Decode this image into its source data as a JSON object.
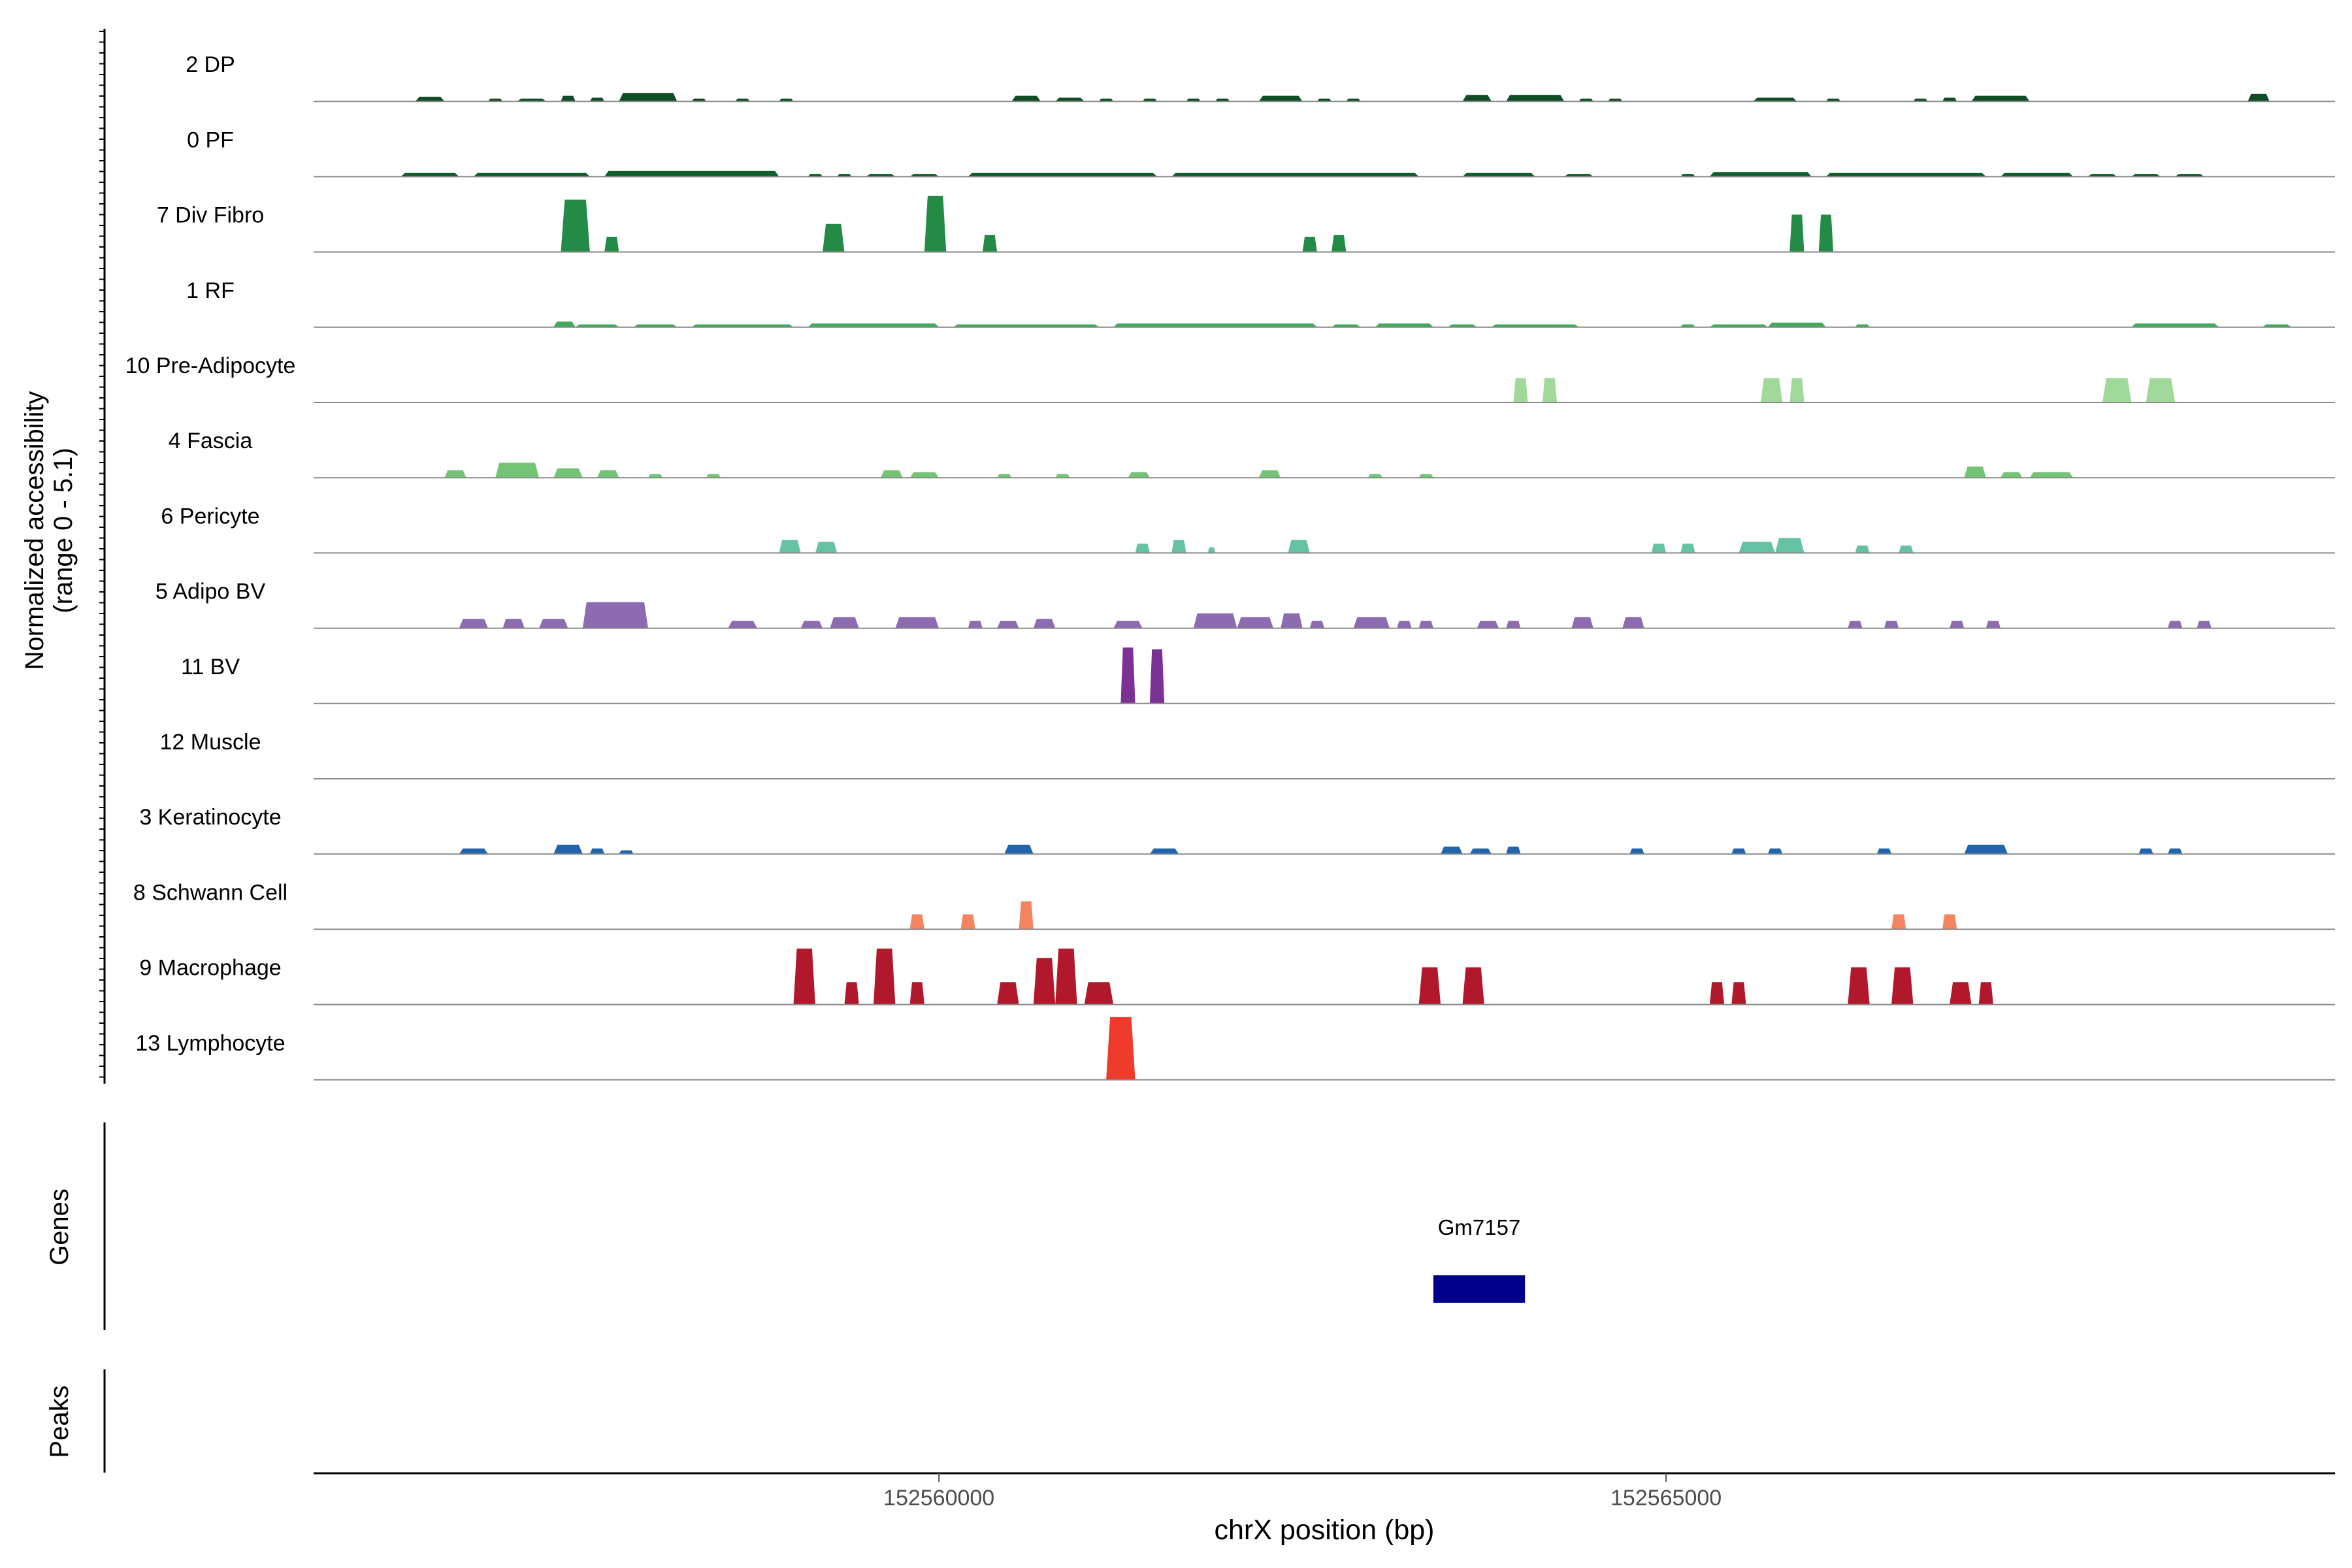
{
  "chart_data": {
    "type": "area",
    "subtype": "genome-coverage-tracks",
    "xlabel": "chrX position (bp)",
    "ylabel_line1": "Normalized accessibility",
    "ylabel_line2": "(range 0 - 5.1)",
    "y_range": [
      0,
      5.1
    ],
    "x_range": [
      152555700,
      152569600
    ],
    "x_ticks": [
      {
        "value": 152560000,
        "label": "152560000"
      },
      {
        "value": 152565000,
        "label": "152565000"
      }
    ],
    "tracks": [
      {
        "name": "2 DP",
        "color": "#0f4d25",
        "peaks": [
          [
            152556400,
            152556600,
            0.25
          ],
          [
            152556900,
            152557000,
            0.15
          ],
          [
            152557100,
            152557300,
            0.15
          ],
          [
            152557400,
            152557500,
            0.3
          ],
          [
            152557600,
            152557700,
            0.2
          ],
          [
            152557800,
            152558200,
            0.45
          ],
          [
            152558300,
            152558400,
            0.15
          ],
          [
            152558600,
            152558700,
            0.15
          ],
          [
            152558900,
            152559000,
            0.15
          ],
          [
            152560500,
            152560700,
            0.3
          ],
          [
            152560800,
            152561000,
            0.2
          ],
          [
            152561100,
            152561200,
            0.15
          ],
          [
            152561400,
            152561500,
            0.15
          ],
          [
            152561700,
            152561800,
            0.15
          ],
          [
            152561900,
            152562000,
            0.15
          ],
          [
            152562200,
            152562500,
            0.3
          ],
          [
            152562600,
            152562700,
            0.15
          ],
          [
            152562800,
            152562900,
            0.15
          ],
          [
            152563600,
            152563800,
            0.35
          ],
          [
            152563900,
            152564300,
            0.35
          ],
          [
            152564400,
            152564500,
            0.15
          ],
          [
            152564600,
            152564700,
            0.15
          ],
          [
            152565600,
            152565900,
            0.2
          ],
          [
            152566100,
            152566200,
            0.15
          ],
          [
            152566700,
            152566800,
            0.15
          ],
          [
            152566900,
            152567000,
            0.2
          ],
          [
            152567100,
            152567500,
            0.3
          ],
          [
            152569000,
            152569150,
            0.4
          ]
        ]
      },
      {
        "name": "0 PF",
        "color": "#0f5f2c",
        "peaks": [
          [
            152556300,
            152556700,
            0.2
          ],
          [
            152556800,
            152557600,
            0.2
          ],
          [
            152557700,
            152558900,
            0.3
          ],
          [
            152559100,
            152559200,
            0.15
          ],
          [
            152559300,
            152559400,
            0.15
          ],
          [
            152559500,
            152559700,
            0.15
          ],
          [
            152559800,
            152560000,
            0.15
          ],
          [
            152560200,
            152561500,
            0.2
          ],
          [
            152561600,
            152563300,
            0.2
          ],
          [
            152563600,
            152564100,
            0.2
          ],
          [
            152564300,
            152564500,
            0.15
          ],
          [
            152565100,
            152565200,
            0.15
          ],
          [
            152565300,
            152566000,
            0.25
          ],
          [
            152566100,
            152567200,
            0.2
          ],
          [
            152567300,
            152567800,
            0.2
          ],
          [
            152567900,
            152568100,
            0.15
          ],
          [
            152568200,
            152568400,
            0.15
          ],
          [
            152568500,
            152568700,
            0.15
          ]
        ]
      },
      {
        "name": "7 Div Fibro",
        "color": "#238b45",
        "peaks": [
          [
            152557400,
            152557600,
            2.8
          ],
          [
            152557700,
            152557800,
            0.8
          ],
          [
            152559200,
            152559350,
            1.5
          ],
          [
            152559900,
            152560050,
            3.0
          ],
          [
            152560300,
            152560400,
            0.9
          ],
          [
            152562500,
            152562600,
            0.8
          ],
          [
            152562700,
            152562800,
            0.9
          ],
          [
            152565850,
            152565950,
            2.0
          ],
          [
            152566050,
            152566150,
            2.0
          ]
        ]
      },
      {
        "name": "1 RF",
        "color": "#41ab5d",
        "peaks": [
          [
            152557350,
            152557500,
            0.3
          ],
          [
            152557500,
            152557800,
            0.15
          ],
          [
            152557900,
            152558200,
            0.15
          ],
          [
            152558300,
            152559000,
            0.15
          ],
          [
            152559100,
            152560000,
            0.2
          ],
          [
            152560100,
            152561100,
            0.15
          ],
          [
            152561200,
            152562600,
            0.2
          ],
          [
            152562700,
            152562900,
            0.15
          ],
          [
            152563000,
            152563400,
            0.2
          ],
          [
            152563500,
            152563700,
            0.15
          ],
          [
            152563800,
            152564400,
            0.15
          ],
          [
            152565100,
            152565200,
            0.15
          ],
          [
            152565300,
            152565700,
            0.15
          ],
          [
            152565700,
            152566100,
            0.25
          ],
          [
            152566300,
            152566400,
            0.15
          ],
          [
            152568200,
            152568800,
            0.2
          ],
          [
            152569100,
            152569300,
            0.15
          ]
        ]
      },
      {
        "name": "10 Pre-Adipocyte",
        "color": "#a1d99b",
        "peaks": [
          [
            152563950,
            152564050,
            1.3
          ],
          [
            152564150,
            152564250,
            1.3
          ],
          [
            152565650,
            152565800,
            1.3
          ],
          [
            152565850,
            152565950,
            1.3
          ],
          [
            152568000,
            152568200,
            1.3
          ],
          [
            152568300,
            152568500,
            1.3
          ]
        ]
      },
      {
        "name": "4 Fascia",
        "color": "#74c476",
        "peaks": [
          [
            152556600,
            152556750,
            0.4
          ],
          [
            152556950,
            152557250,
            0.8
          ],
          [
            152557350,
            152557550,
            0.5
          ],
          [
            152557650,
            152557800,
            0.4
          ],
          [
            152558000,
            152558100,
            0.2
          ],
          [
            152558400,
            152558500,
            0.2
          ],
          [
            152559600,
            152559750,
            0.4
          ],
          [
            152559800,
            152560000,
            0.3
          ],
          [
            152560400,
            152560500,
            0.2
          ],
          [
            152560800,
            152560900,
            0.2
          ],
          [
            152561300,
            152561450,
            0.3
          ],
          [
            152562200,
            152562350,
            0.4
          ],
          [
            152562950,
            152563050,
            0.2
          ],
          [
            152563300,
            152563400,
            0.2
          ],
          [
            152567050,
            152567200,
            0.6
          ],
          [
            152567300,
            152567450,
            0.3
          ],
          [
            152567500,
            152567800,
            0.3
          ]
        ]
      },
      {
        "name": "6 Pericyte",
        "color": "#66c2a4",
        "peaks": [
          [
            152558900,
            152559050,
            0.7
          ],
          [
            152559150,
            152559300,
            0.6
          ],
          [
            152561350,
            152561450,
            0.5
          ],
          [
            152561600,
            152561700,
            0.7
          ],
          [
            152561850,
            152561900,
            0.3
          ],
          [
            152562400,
            152562550,
            0.7
          ],
          [
            152564900,
            152565000,
            0.5
          ],
          [
            152565100,
            152565200,
            0.5
          ],
          [
            152565500,
            152565750,
            0.6
          ],
          [
            152565750,
            152565950,
            0.8
          ],
          [
            152566300,
            152566400,
            0.4
          ],
          [
            152566600,
            152566700,
            0.4
          ]
        ]
      },
      {
        "name": "5 Adipo BV",
        "color": "#8c6bb1",
        "peaks": [
          [
            152556700,
            152556900,
            0.5
          ],
          [
            152557000,
            152557150,
            0.5
          ],
          [
            152557250,
            152557450,
            0.5
          ],
          [
            152557550,
            152558000,
            1.4
          ],
          [
            152558550,
            152558750,
            0.4
          ],
          [
            152559050,
            152559200,
            0.4
          ],
          [
            152559250,
            152559450,
            0.6
          ],
          [
            152559700,
            152560000,
            0.6
          ],
          [
            152560200,
            152560300,
            0.4
          ],
          [
            152560400,
            152560550,
            0.4
          ],
          [
            152560650,
            152560800,
            0.5
          ],
          [
            152561200,
            152561400,
            0.4
          ],
          [
            152561750,
            152562050,
            0.8
          ],
          [
            152562050,
            152562300,
            0.6
          ],
          [
            152562350,
            152562500,
            0.8
          ],
          [
            152562550,
            152562650,
            0.4
          ],
          [
            152562850,
            152563100,
            0.6
          ],
          [
            152563150,
            152563250,
            0.4
          ],
          [
            152563300,
            152563400,
            0.4
          ],
          [
            152563700,
            152563850,
            0.4
          ],
          [
            152563900,
            152564000,
            0.4
          ],
          [
            152564350,
            152564500,
            0.6
          ],
          [
            152564700,
            152564850,
            0.6
          ],
          [
            152566250,
            152566350,
            0.4
          ],
          [
            152566500,
            152566600,
            0.4
          ],
          [
            152566950,
            152567050,
            0.4
          ],
          [
            152567200,
            152567300,
            0.4
          ],
          [
            152568450,
            152568550,
            0.4
          ],
          [
            152568650,
            152568750,
            0.4
          ]
        ]
      },
      {
        "name": "11 BV",
        "color": "#7b3294",
        "peaks": [
          [
            152561250,
            152561350,
            3.0
          ],
          [
            152561450,
            152561550,
            2.9
          ]
        ]
      },
      {
        "name": "12 Muscle",
        "color": "#6a51a3",
        "peaks": []
      },
      {
        "name": "3 Keratinocyte",
        "color": "#2166ac",
        "peaks": [
          [
            152556700,
            152556900,
            0.3
          ],
          [
            152557350,
            152557550,
            0.5
          ],
          [
            152557600,
            152557700,
            0.3
          ],
          [
            152557800,
            152557900,
            0.2
          ],
          [
            152560450,
            152560650,
            0.5
          ],
          [
            152561450,
            152561650,
            0.3
          ],
          [
            152563450,
            152563600,
            0.4
          ],
          [
            152563650,
            152563800,
            0.3
          ],
          [
            152563900,
            152564000,
            0.4
          ],
          [
            152564750,
            152564850,
            0.3
          ],
          [
            152565450,
            152565550,
            0.3
          ],
          [
            152565700,
            152565800,
            0.3
          ],
          [
            152566450,
            152566550,
            0.3
          ],
          [
            152567050,
            152567350,
            0.5
          ],
          [
            152568250,
            152568350,
            0.3
          ],
          [
            152568450,
            152568550,
            0.3
          ]
        ]
      },
      {
        "name": "8 Schwann Cell",
        "color": "#f4845f",
        "peaks": [
          [
            152559800,
            152559900,
            0.8
          ],
          [
            152560150,
            152560250,
            0.8
          ],
          [
            152560550,
            152560650,
            1.5
          ],
          [
            152566550,
            152566650,
            0.8
          ],
          [
            152566900,
            152567000,
            0.8
          ]
        ]
      },
      {
        "name": "9 Macrophage",
        "color": "#b2182b",
        "peaks": [
          [
            152559000,
            152559150,
            3.0
          ],
          [
            152559350,
            152559450,
            1.2
          ],
          [
            152559550,
            152559700,
            3.0
          ],
          [
            152559800,
            152559900,
            1.2
          ],
          [
            152560400,
            152560550,
            1.2
          ],
          [
            152560650,
            152560800,
            2.5
          ],
          [
            152560800,
            152560950,
            3.0
          ],
          [
            152561000,
            152561200,
            1.2
          ],
          [
            152563300,
            152563450,
            2.0
          ],
          [
            152563600,
            152563750,
            2.0
          ],
          [
            152565300,
            152565400,
            1.2
          ],
          [
            152565450,
            152565550,
            1.2
          ],
          [
            152566250,
            152566400,
            2.0
          ],
          [
            152566550,
            152566700,
            2.0
          ],
          [
            152566950,
            152567100,
            1.2
          ],
          [
            152567150,
            152567250,
            1.2
          ]
        ]
      },
      {
        "name": "13 Lymphocyte",
        "color": "#ee3b2b",
        "peaks": [
          [
            152561150,
            152561350,
            3.5
          ]
        ]
      }
    ],
    "genes_label": "Genes",
    "peaks_label": "Peaks",
    "genes": [
      {
        "name": "Gm7157",
        "start": 152563400,
        "end": 152564030,
        "color": "#00008b"
      }
    ]
  }
}
